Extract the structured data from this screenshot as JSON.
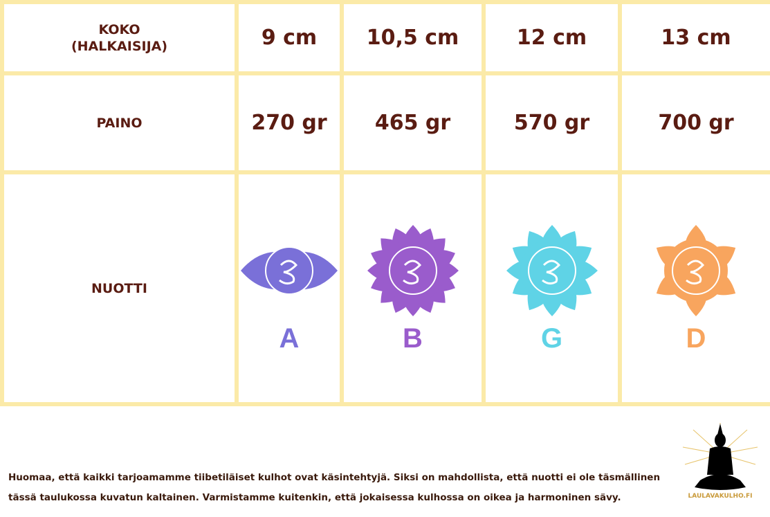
{
  "table": {
    "rows": [
      {
        "label": [
          "KOKO",
          "(HALKAISIJA)"
        ],
        "cells": [
          "9 cm",
          "10,5 cm",
          "12 cm",
          "13 cm"
        ]
      },
      {
        "label": [
          "PAINO"
        ],
        "cells": [
          "270 gr",
          "465 gr",
          "570 gr",
          "700 gr"
        ]
      },
      {
        "label": [
          "NUOTTI"
        ],
        "notes": [
          {
            "letter": "A",
            "color": "#7a70d8"
          },
          {
            "letter": "B",
            "color": "#9a5ccc"
          },
          {
            "letter": "G",
            "color": "#5fd3e6"
          },
          {
            "letter": "D",
            "color": "#f8a55e"
          }
        ]
      }
    ]
  },
  "footer": {
    "note": [
      "Huomaa, että kaikki tarjoamamme tiibetiläiset kulhot ovat käsintehtyjä. Siksi on mahdollista, että nuotti ei ole täsmällinen",
      "tässä taulukossa kuvatun kaltainen. Varmistamme kuitenkin, että jokaisessa kulhossa on oikea ja harmoninen sävy."
    ],
    "logo": "LAULAVAKULHO.FI"
  }
}
